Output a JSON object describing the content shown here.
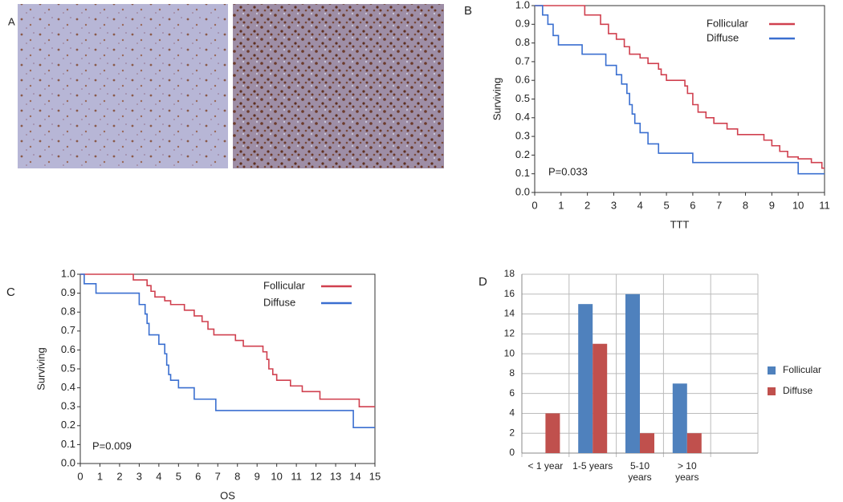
{
  "panel_a": {
    "label": "A"
  },
  "chart_data": [
    {
      "panel": "B",
      "type": "line",
      "step": true,
      "xlabel": "TTT",
      "ylabel": "Surviving",
      "annotation": "P=0.033",
      "xlim": [
        0,
        11
      ],
      "xticks": [
        0,
        1,
        2,
        3,
        4,
        5,
        6,
        7,
        8,
        9,
        10,
        11
      ],
      "ylim": [
        0,
        1
      ],
      "yticks": [
        {
          "value": 0,
          "label": "0.0"
        },
        0.1,
        0.2,
        0.3,
        0.4,
        0.5,
        0.6,
        0.7,
        0.8,
        0.9,
        {
          "value": 1,
          "label": "1.0"
        }
      ],
      "legend": "upper right",
      "series": [
        {
          "name": "Follicular",
          "color": "#d0404f",
          "x": [
            0,
            1.9,
            2.5,
            2.8,
            3.1,
            3.4,
            3.6,
            4.0,
            4.3,
            4.7,
            4.8,
            5.0,
            5.7,
            5.8,
            6.0,
            6.2,
            6.5,
            6.8,
            7.3,
            7.7,
            8.7,
            9.0,
            9.3,
            9.6,
            10.0,
            10.5,
            10.9,
            11
          ],
          "values": [
            1.0,
            0.95,
            0.9,
            0.85,
            0.82,
            0.78,
            0.74,
            0.72,
            0.69,
            0.66,
            0.63,
            0.6,
            0.57,
            0.53,
            0.47,
            0.43,
            0.4,
            0.37,
            0.34,
            0.31,
            0.28,
            0.25,
            0.22,
            0.19,
            0.18,
            0.16,
            0.13,
            0.13
          ]
        },
        {
          "name": "Diffuse",
          "color": "#3a6fd0",
          "x": [
            0,
            0.3,
            0.5,
            0.7,
            0.9,
            1.8,
            2.7,
            3.1,
            3.3,
            3.5,
            3.6,
            3.7,
            3.8,
            4.0,
            4.3,
            4.7,
            6.0,
            10.0,
            11
          ],
          "values": [
            1.0,
            0.95,
            0.9,
            0.84,
            0.79,
            0.74,
            0.68,
            0.63,
            0.58,
            0.53,
            0.47,
            0.42,
            0.37,
            0.32,
            0.26,
            0.21,
            0.16,
            0.1,
            0.1
          ]
        }
      ]
    },
    {
      "panel": "C",
      "type": "line",
      "step": true,
      "xlabel": "OS",
      "ylabel": "Surviving",
      "annotation": "P=0.009",
      "xlim": [
        0,
        15
      ],
      "xticks": [
        0,
        1,
        2,
        3,
        4,
        5,
        6,
        7,
        8,
        9,
        10,
        11,
        12,
        13,
        14,
        15
      ],
      "ylim": [
        0,
        1
      ],
      "yticks": [
        {
          "value": 0,
          "label": "0.0"
        },
        0.1,
        0.2,
        0.3,
        0.4,
        0.5,
        0.6,
        0.7,
        0.8,
        0.9,
        {
          "value": 1,
          "label": "1.0"
        }
      ],
      "legend": "upper right",
      "series": [
        {
          "name": "Follicular",
          "color": "#d0404f",
          "x": [
            0,
            2.7,
            3.4,
            3.6,
            3.8,
            4.3,
            4.6,
            5.3,
            5.8,
            6.2,
            6.5,
            6.8,
            7.9,
            8.3,
            9.3,
            9.5,
            9.6,
            9.8,
            10.0,
            10.7,
            11.3,
            12.2,
            14.2,
            15
          ],
          "values": [
            1.0,
            0.97,
            0.94,
            0.91,
            0.88,
            0.86,
            0.84,
            0.81,
            0.78,
            0.75,
            0.71,
            0.68,
            0.65,
            0.62,
            0.59,
            0.55,
            0.5,
            0.47,
            0.44,
            0.41,
            0.38,
            0.34,
            0.3,
            0.3
          ]
        },
        {
          "name": "Diffuse",
          "color": "#3a6fd0",
          "x": [
            0,
            0.2,
            0.8,
            3.0,
            3.3,
            3.4,
            3.5,
            4.0,
            4.3,
            4.4,
            4.5,
            4.6,
            5.0,
            5.8,
            6.9,
            13.9,
            15
          ],
          "values": [
            1.0,
            0.95,
            0.9,
            0.84,
            0.79,
            0.74,
            0.68,
            0.63,
            0.58,
            0.52,
            0.47,
            0.44,
            0.4,
            0.34,
            0.28,
            0.19,
            0.19
          ]
        }
      ]
    },
    {
      "panel": "D",
      "type": "bar",
      "grid": true,
      "legend": "right",
      "categories": [
        "< 1 year",
        "1-5 years",
        "5-10 years",
        "> 10 years",
        null
      ],
      "ylim": [
        0,
        18
      ],
      "yticks": [
        0,
        2,
        4,
        6,
        8,
        10,
        12,
        14,
        16,
        18
      ],
      "series": [
        {
          "name": "Follicular",
          "color": "#4f81bd",
          "values": [
            0,
            15,
            16,
            7,
            null
          ]
        },
        {
          "name": "Diffuse",
          "color": "#c0504d",
          "values": [
            4,
            11,
            2,
            2,
            null
          ]
        }
      ]
    }
  ]
}
